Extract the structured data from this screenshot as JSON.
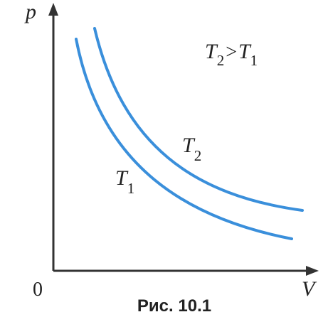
{
  "axes": {
    "y_label": "p",
    "x_label": "V",
    "origin": "0"
  },
  "curves": [
    {
      "main": "T",
      "sub": "1"
    },
    {
      "main": "T",
      "sub": "2"
    }
  ],
  "condition": {
    "left": {
      "main": "T",
      "sub": "2"
    },
    "op": ">",
    "right": {
      "main": "T",
      "sub": "1"
    }
  },
  "caption": "Рис. 10.1"
}
